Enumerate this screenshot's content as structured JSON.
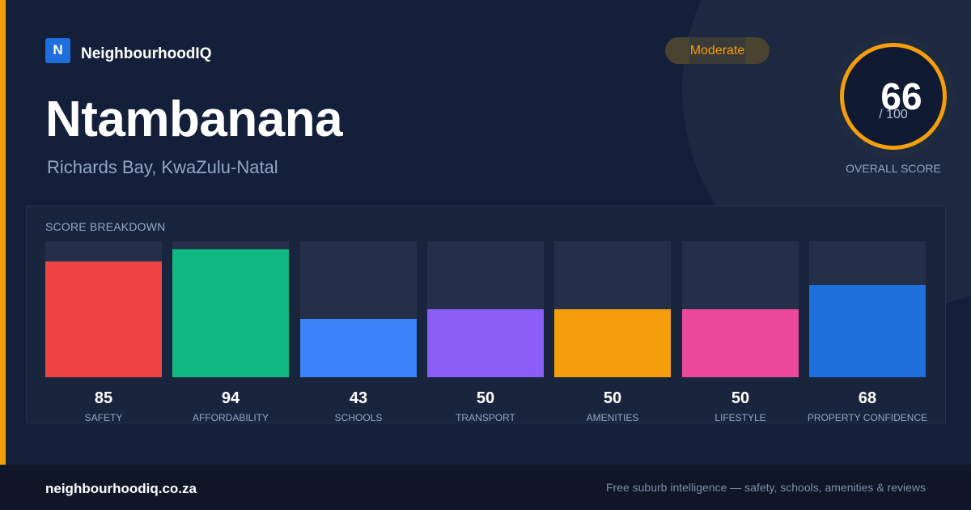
{
  "brand": {
    "logo_letter": "N",
    "name": "NeighbourhoodIQ"
  },
  "suburb": {
    "name": "Ntambanana",
    "location": "Richards Bay, KwaZulu-Natal"
  },
  "rating": {
    "label": "Moderate",
    "color": "#f59e0b"
  },
  "overall": {
    "score": "66",
    "max": "/ 100",
    "label": "OVERALL SCORE"
  },
  "breakdown": {
    "title": "SCORE BREAKDOWN",
    "items": [
      {
        "label": "SAFETY",
        "value": 85,
        "display": "85",
        "color": "#ef4444"
      },
      {
        "label": "AFFORDABILITY",
        "value": 94,
        "display": "94",
        "color": "#10b981"
      },
      {
        "label": "SCHOOLS",
        "value": 43,
        "display": "43",
        "color": "#3b82f6"
      },
      {
        "label": "TRANSPORT",
        "value": 50,
        "display": "50",
        "color": "#8b5cf6"
      },
      {
        "label": "AMENITIES",
        "value": 50,
        "display": "50",
        "color": "#f59e0b"
      },
      {
        "label": "LIFESTYLE",
        "value": 50,
        "display": "50",
        "color": "#ec4899"
      },
      {
        "label": "PROPERTY CONFIDENCE",
        "value": 68,
        "display": "68",
        "color": "#1e6fdb"
      }
    ]
  },
  "footer": {
    "domain": "neighbourhoodiq.co.za",
    "tagline": "Free suburb intelligence — safety, schools, amenities & reviews"
  }
}
